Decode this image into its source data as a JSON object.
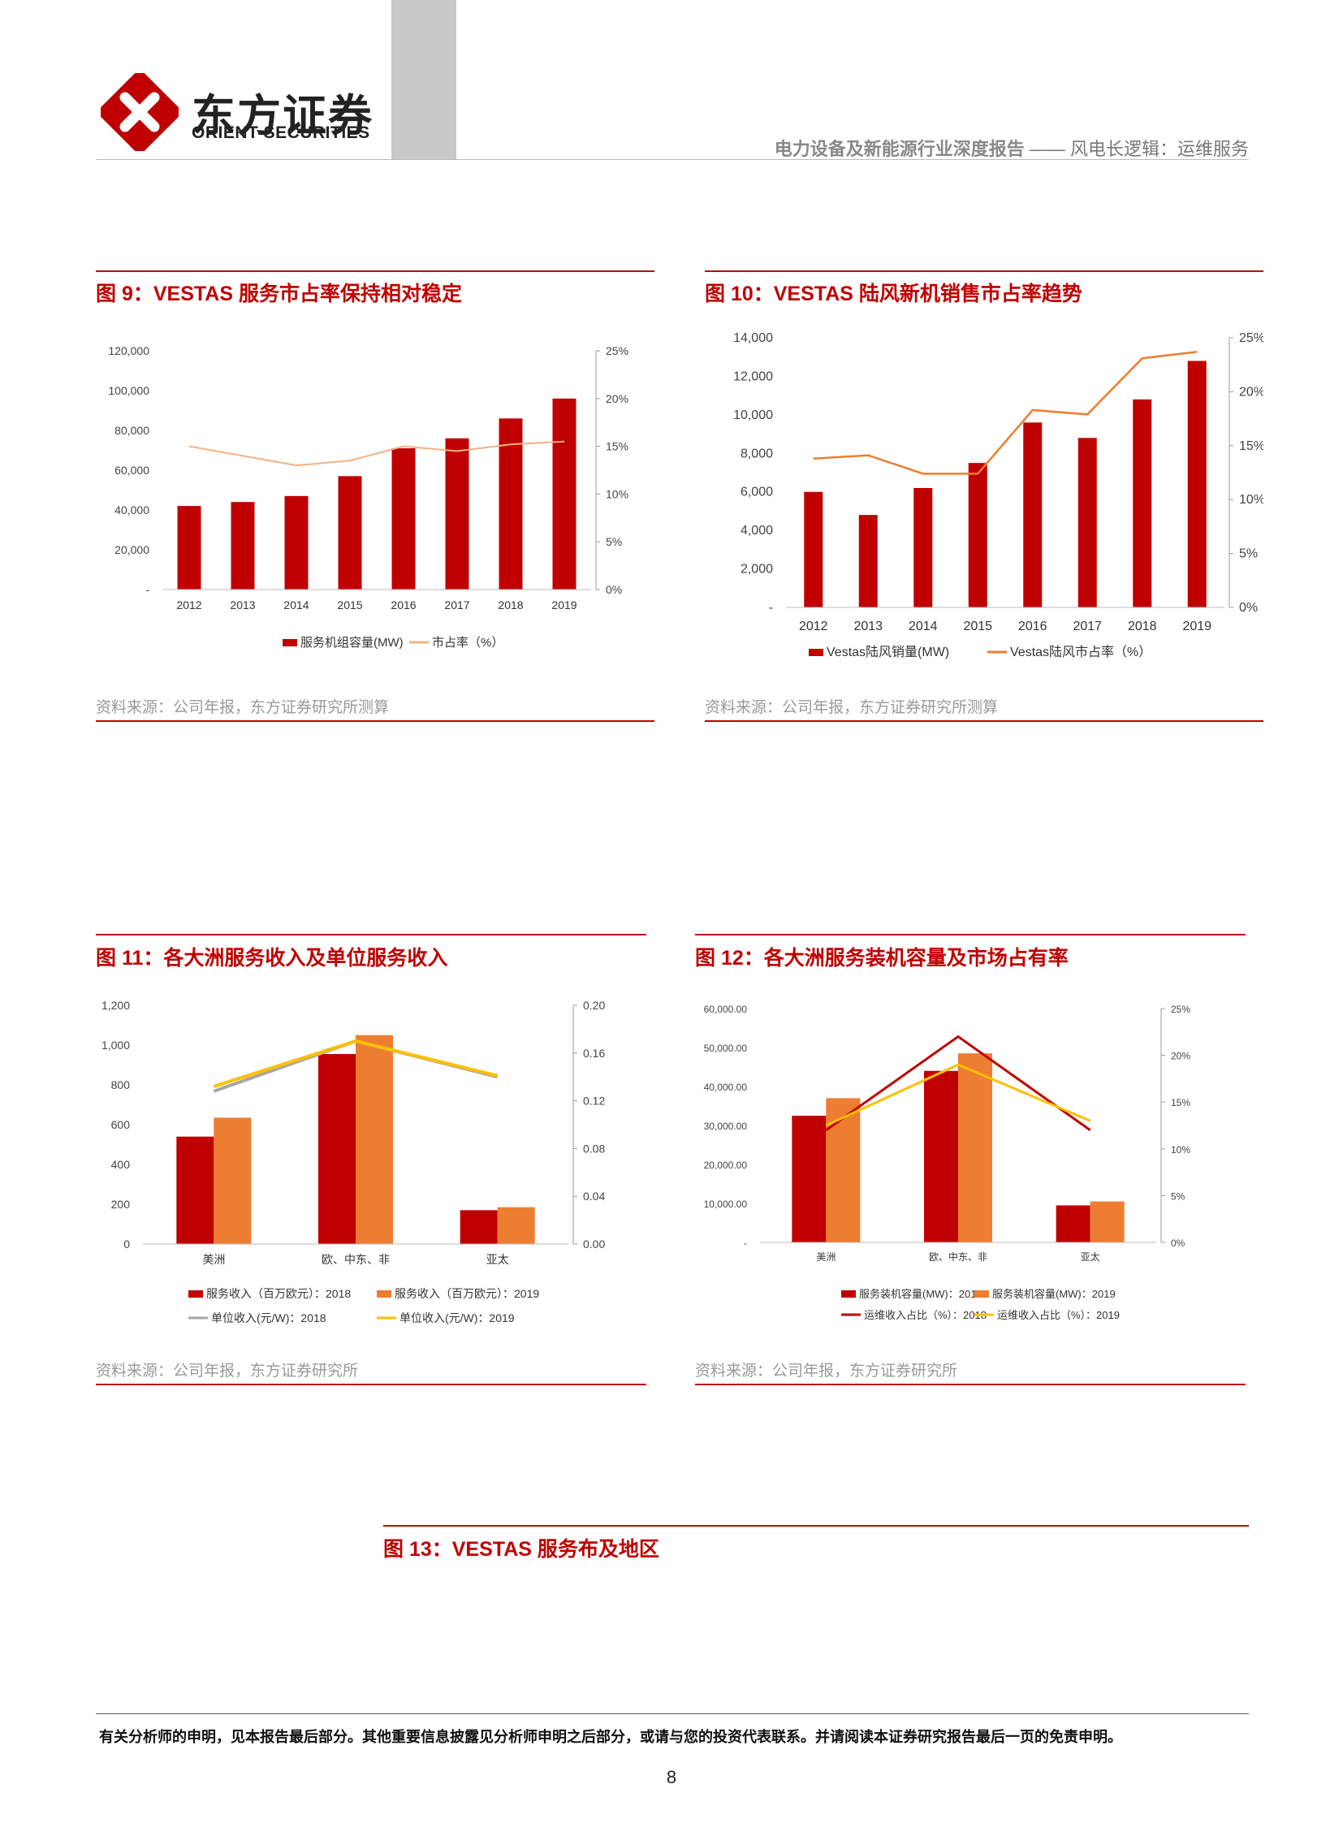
{
  "header": {
    "logo_cn": "东方证券",
    "logo_en": "ORIENT SECURITIES",
    "report_title": "电力设备及新能源行业深度报告",
    "report_subtitle": "—— 风电长逻辑：运维服务"
  },
  "colors": {
    "red": "#c00000",
    "orange": "#ed7d31",
    "light_orange": "#f4b183",
    "gray": "#a6a6a6",
    "yellow": "#ffc000",
    "dark_red": "#c00000"
  },
  "fig9": {
    "title": "图 9：VESTAS 服务市占率保持相对稳定",
    "source": "资料来源：公司年报，东方证券研究所测算",
    "chart_data": {
      "type": "bar",
      "categories": [
        "2012",
        "2013",
        "2014",
        "2015",
        "2016",
        "2017",
        "2018",
        "2019"
      ],
      "series": [
        {
          "name": "服务机组容量(MW)",
          "type": "bar",
          "axis": "left",
          "values": [
            42000,
            44000,
            47000,
            57000,
            71000,
            76000,
            86000,
            96000
          ]
        },
        {
          "name": "市占率（%）",
          "type": "line",
          "axis": "right",
          "values": [
            15.0,
            14.0,
            13.0,
            13.5,
            15.0,
            14.5,
            15.2,
            15.5
          ]
        }
      ],
      "left_ticks": [
        "-",
        "20,000",
        "40,000",
        "60,000",
        "80,000",
        "100,000",
        "120,000"
      ],
      "right_ticks": [
        "0%",
        "5%",
        "10%",
        "15%",
        "20%",
        "25%"
      ],
      "ylim_left": [
        0,
        120000
      ],
      "ylim_right": [
        0,
        25
      ],
      "legend_position": "bottom"
    }
  },
  "fig10": {
    "title": "图 10：VESTAS 陆风新机销售市占率趋势",
    "source": "资料来源：公司年报，东方证券研究所测算",
    "chart_data": {
      "type": "bar",
      "categories": [
        "2012",
        "2013",
        "2014",
        "2015",
        "2016",
        "2017",
        "2018",
        "2019"
      ],
      "series": [
        {
          "name": "Vestas陆风销量(MW)",
          "type": "bar",
          "axis": "left",
          "values": [
            6000,
            4800,
            6200,
            7500,
            9600,
            8800,
            10800,
            12800
          ]
        },
        {
          "name": "Vestas陆风市占率（%）",
          "type": "line",
          "axis": "right",
          "values": [
            13.8,
            14.1,
            12.4,
            12.4,
            18.3,
            17.9,
            23.1,
            23.7
          ]
        }
      ],
      "left_ticks": [
        "-",
        "2,000",
        "4,000",
        "6,000",
        "8,000",
        "10,000",
        "12,000",
        "14,000"
      ],
      "right_ticks": [
        "0%",
        "5%",
        "10%",
        "15%",
        "20%",
        "25%"
      ],
      "ylim_left": [
        0,
        14000
      ],
      "ylim_right": [
        0,
        25
      ],
      "legend_position": "bottom"
    }
  },
  "fig11": {
    "title": "图 11：各大洲服务收入及单位服务收入",
    "source": "资料来源：公司年报，东方证券研究所",
    "chart_data": {
      "type": "bar",
      "categories": [
        "美洲",
        "欧、中东、非",
        "亚太"
      ],
      "series": [
        {
          "name": "服务收入（百万欧元）：2018",
          "type": "bar",
          "axis": "left",
          "values": [
            540,
            955,
            170
          ]
        },
        {
          "name": "服务收入（百万欧元）：2019",
          "type": "bar",
          "axis": "left",
          "values": [
            635,
            1050,
            185
          ]
        },
        {
          "name": "单位收入(元/W)：2018",
          "type": "line",
          "axis": "right",
          "values": [
            0.128,
            0.17,
            0.14
          ]
        },
        {
          "name": "单位收入(元/W)：2019",
          "type": "line",
          "axis": "right",
          "values": [
            0.132,
            0.17,
            0.141
          ]
        }
      ],
      "left_ticks": [
        "0",
        "200",
        "400",
        "600",
        "800",
        "1,000",
        "1,200"
      ],
      "right_ticks": [
        "0.00",
        "0.04",
        "0.08",
        "0.12",
        "0.16",
        "0.20"
      ],
      "ylim_left": [
        0,
        1200
      ],
      "ylim_right": [
        0,
        0.2
      ],
      "legend_position": "bottom"
    }
  },
  "fig12": {
    "title": "图 12：各大洲服务装机容量及市场占有率",
    "source": "资料来源：公司年报，东方证券研究所",
    "chart_data": {
      "type": "bar",
      "categories": [
        "美洲",
        "欧、中东、非",
        "亚太"
      ],
      "series": [
        {
          "name": "服务装机容量(MW)：2018",
          "type": "bar",
          "axis": "left",
          "values": [
            32500,
            44000,
            9500
          ]
        },
        {
          "name": "服务装机容量(MW)：2019",
          "type": "bar",
          "axis": "left",
          "values": [
            37000,
            48500,
            10500
          ]
        },
        {
          "name": "运维收入占比（%）：2018",
          "type": "line",
          "axis": "right",
          "values": [
            12.0,
            22.0,
            12.0
          ]
        },
        {
          "name": "运维收入占比（%）：2019",
          "type": "line",
          "axis": "right",
          "values": [
            12.5,
            19.0,
            13.0
          ]
        }
      ],
      "left_ticks": [
        "-",
        "10,000.00",
        "20,000.00",
        "30,000.00",
        "40,000.00",
        "50,000.00",
        "60,000.00"
      ],
      "right_ticks": [
        "0%",
        "5%",
        "10%",
        "15%",
        "20%",
        "25%"
      ],
      "ylim_left": [
        0,
        60000
      ],
      "ylim_right": [
        0,
        25
      ],
      "legend_position": "bottom"
    }
  },
  "fig13": {
    "title": "图 13：VESTAS 服务布及地区"
  },
  "footer": {
    "disclaimer": "有关分析师的申明，见本报告最后部分。其他重要信息披露见分析师申明之后部分，或请与您的投资代表联系。并请阅读本证券研究报告最后一页的免责申明。",
    "page_number": "8"
  }
}
